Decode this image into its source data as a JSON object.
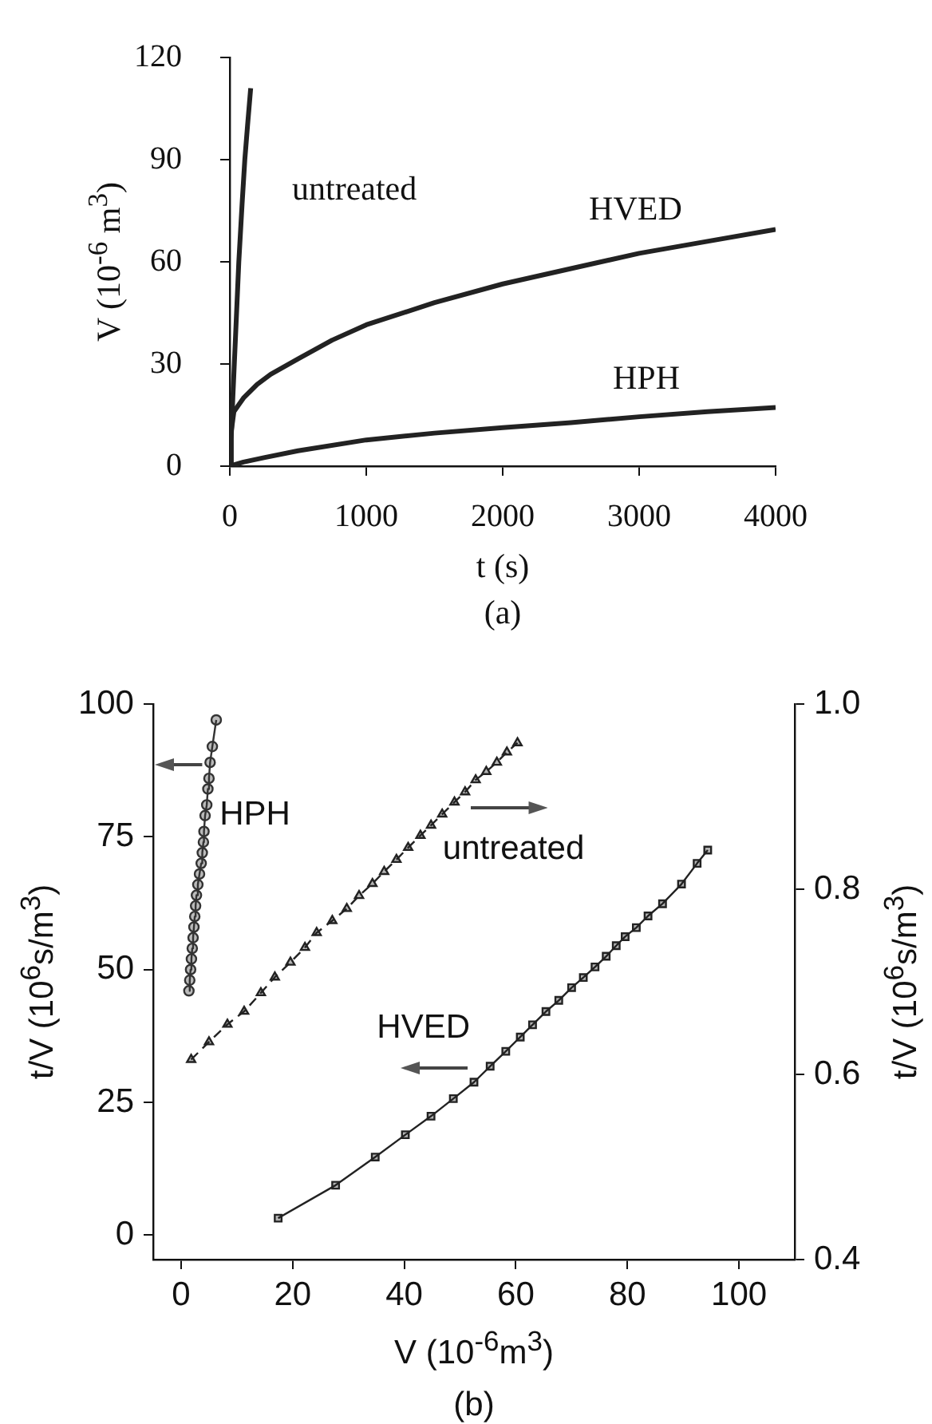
{
  "chart_data": [
    {
      "type": "line",
      "xlabel": "t (s)",
      "ylabel": "V (10$^{-6}$ m$^{3}$)",
      "xlim": [
        0,
        4000
      ],
      "ylim": [
        0,
        120
      ],
      "xticks": [
        0,
        1000,
        2000,
        3000,
        4000
      ],
      "yticks": [
        0,
        30,
        60,
        90,
        120
      ],
      "annotations": [
        "(a)"
      ],
      "series": [
        {
          "name": "untreated",
          "color": "#222222",
          "x": [
            0,
            10,
            22,
            44,
            66,
            90,
            110,
            130,
            153
          ],
          "values": [
            0,
            8,
            20,
            40,
            60,
            77,
            90,
            100,
            111
          ]
        },
        {
          "name": "HVED",
          "color": "#222222",
          "x": [
            0,
            10,
            30,
            100,
            200,
            300,
            500,
            750,
            1000,
            1500,
            2000,
            2500,
            3000,
            3500,
            4000
          ],
          "values": [
            0,
            10,
            16,
            20,
            24,
            27,
            31.5,
            37,
            41.5,
            48,
            53.5,
            58,
            62.5,
            66,
            69.5
          ]
        },
        {
          "name": "HPH",
          "color": "#222222",
          "x": [
            0,
            100,
            250,
            500,
            1000,
            1500,
            2000,
            2500,
            3000,
            3500,
            4000
          ],
          "values": [
            0,
            1.2,
            2.5,
            4.5,
            7.7,
            9.7,
            11.3,
            12.8,
            14.5,
            16,
            17.2
          ]
        }
      ]
    },
    {
      "type": "line",
      "xlabel": "V (10$^{-6}$m$^{3}$)",
      "ylabel": "t/V (10$^{6}$s/m$^{3}$)",
      "y2label": "t/V (10$^{6}$s/m$^{3}$)",
      "xlim": [
        -5,
        110
      ],
      "ylim": [
        -4.6,
        100
      ],
      "y2lim": [
        0.4,
        1.0
      ],
      "xticks": [
        0,
        20,
        40,
        60,
        80,
        100
      ],
      "yticks": [
        0,
        25,
        50,
        75,
        100
      ],
      "y2ticks": [
        0.4,
        0.6,
        0.8,
        {
          "value": 1.0,
          "label": "1.0"
        }
      ],
      "annotations": [
        "(b)"
      ],
      "series": [
        {
          "name": "HPH",
          "color": "#333333",
          "marker": "circle",
          "x": [
            1.4,
            1.55,
            1.7,
            1.85,
            2.0,
            2.15,
            2.3,
            2.45,
            2.6,
            2.75,
            3.0,
            3.3,
            3.6,
            3.8,
            4.0,
            4.1,
            4.3,
            4.6,
            4.8,
            5.0,
            5.2,
            5.6,
            6.3
          ],
          "values": [
            46,
            48,
            50,
            52,
            54,
            56,
            58,
            60,
            62,
            64,
            66,
            68,
            70,
            72,
            74,
            76,
            79,
            81,
            84,
            86,
            89,
            92,
            97
          ]
        },
        {
          "name": "untreated",
          "color": "#222222",
          "marker": "triangle",
          "line_style": "dashed",
          "axis": "y2",
          "x": [
            1.8,
            5.0,
            8.3,
            11.3,
            14.3,
            16.8,
            19.6,
            22.2,
            24.3,
            27.1,
            29.7,
            31.9,
            34.3,
            36.4,
            38.6,
            40.7,
            42.9,
            44.8,
            46.8,
            49.0,
            50.9,
            52.8,
            54.7,
            56.6,
            58.4,
            60.3
          ],
          "values": [
            0.616,
            0.635,
            0.654,
            0.668,
            0.688,
            0.705,
            0.721,
            0.737,
            0.753,
            0.766,
            0.779,
            0.793,
            0.806,
            0.819,
            0.832,
            0.845,
            0.858,
            0.869,
            0.881,
            0.894,
            0.905,
            0.918,
            0.927,
            0.937,
            0.948,
            0.958
          ]
        },
        {
          "name": "HVED",
          "color": "#222222",
          "marker": "square",
          "x": [
            17.4,
            27.7,
            34.8,
            40.2,
            44.8,
            48.8,
            52.5,
            55.4,
            58.2,
            60.8,
            63.0,
            65.4,
            67.7,
            70.0,
            72.1,
            74.2,
            76.2,
            78.0,
            79.6,
            81.6,
            83.7,
            86.3,
            89.7,
            92.5,
            94.4
          ],
          "values": [
            3.2,
            9.4,
            14.7,
            18.9,
            22.4,
            25.7,
            28.8,
            31.8,
            34.6,
            37.3,
            39.6,
            42.1,
            44.2,
            46.6,
            48.5,
            50.5,
            52.5,
            54.5,
            56.2,
            57.9,
            60.1,
            62.4,
            66.1,
            70.0,
            72.5
          ]
        }
      ]
    }
  ]
}
